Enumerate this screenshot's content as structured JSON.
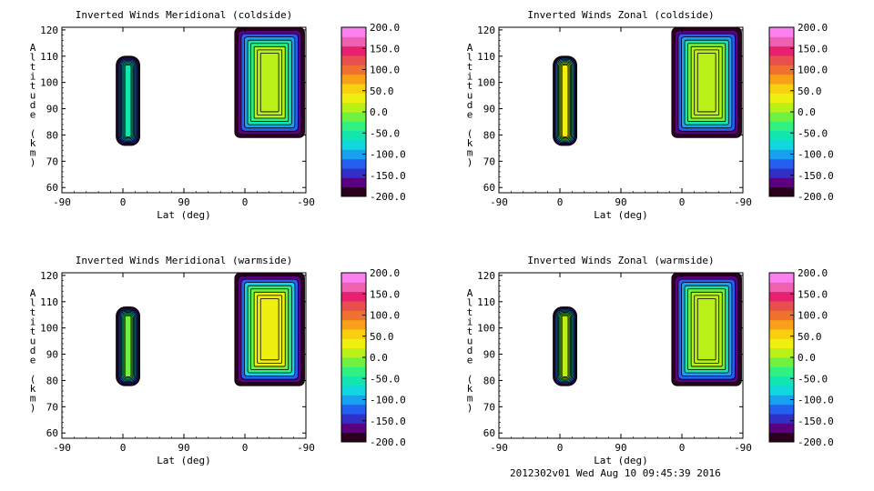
{
  "chart_data": [
    {
      "type": "heatmap",
      "title": "Inverted Winds Meridional (coldside)",
      "xlabel": "Lat (deg)",
      "ylabel": "Altitude (km)",
      "x_ticks": [
        "-90",
        "0",
        "90",
        "0",
        "-90"
      ],
      "y_ticks": [
        "60",
        "70",
        "80",
        "90",
        "100",
        "110",
        "120"
      ],
      "ylim": [
        58,
        121
      ],
      "blocks": [
        {
          "lat_range": [
            -10,
            25
          ],
          "alt_range": [
            76,
            110
          ],
          "center_value": -60,
          "edge_value": -200
        },
        {
          "lat_range": [
            -90,
            10
          ],
          "alt_range": [
            79,
            121
          ],
          "center_value": 10,
          "edge_value": -200
        }
      ]
    },
    {
      "type": "heatmap",
      "title": "Inverted Winds Zonal (coldside)",
      "xlabel": "Lat (deg)",
      "ylabel": "Altitude (km)",
      "x_ticks": [
        "-90",
        "0",
        "90",
        "0",
        "-90"
      ],
      "y_ticks": [
        "60",
        "70",
        "80",
        "90",
        "100",
        "110",
        "120"
      ],
      "ylim": [
        58,
        121
      ],
      "blocks": [
        {
          "lat_range": [
            -10,
            25
          ],
          "alt_range": [
            76,
            110
          ],
          "center_value": 40,
          "edge_value": -200
        },
        {
          "lat_range": [
            -90,
            10
          ],
          "alt_range": [
            79,
            121
          ],
          "center_value": 20,
          "edge_value": -200
        }
      ]
    },
    {
      "type": "heatmap",
      "title": "Inverted Winds Meridional (warmside)",
      "xlabel": "Lat (deg)",
      "ylabel": "Altitude (km)",
      "x_ticks": [
        "-90",
        "0",
        "90",
        "0",
        "-90"
      ],
      "y_ticks": [
        "60",
        "70",
        "80",
        "90",
        "100",
        "110",
        "120"
      ],
      "ylim": [
        58,
        121
      ],
      "blocks": [
        {
          "lat_range": [
            -10,
            25
          ],
          "alt_range": [
            78,
            108
          ],
          "center_value": -20,
          "edge_value": -200
        },
        {
          "lat_range": [
            -90,
            10
          ],
          "alt_range": [
            78,
            121
          ],
          "center_value": 40,
          "edge_value": -200
        }
      ]
    },
    {
      "type": "heatmap",
      "title": "Inverted Winds Zonal (warmside)",
      "xlabel": "Lat (deg)",
      "ylabel": "Altitude (km)",
      "x_ticks": [
        "-90",
        "0",
        "90",
        "0",
        "-90"
      ],
      "y_ticks": [
        "60",
        "70",
        "80",
        "90",
        "100",
        "110",
        "120"
      ],
      "ylim": [
        58,
        121
      ],
      "blocks": [
        {
          "lat_range": [
            -10,
            25
          ],
          "alt_range": [
            78,
            108
          ],
          "center_value": 10,
          "edge_value": -200
        },
        {
          "lat_range": [
            -90,
            10
          ],
          "alt_range": [
            78,
            121
          ],
          "center_value": 20,
          "edge_value": -200
        }
      ]
    }
  ],
  "colorbar": {
    "range": [
      -200,
      200
    ],
    "tick_labels": [
      "200.0",
      "150.0",
      "100.0",
      "50.0",
      "0.0",
      "-50.0",
      "-100.0",
      "-150.0",
      "-200.0"
    ],
    "colors": [
      "#2a001e",
      "#5a0080",
      "#3030c8",
      "#2460f0",
      "#1aa0f0",
      "#12d6e0",
      "#12e6b0",
      "#30f080",
      "#70f040",
      "#b8f018",
      "#f0f010",
      "#f8d010",
      "#f8a018",
      "#f07030",
      "#e85050",
      "#e82070",
      "#f060b0",
      "#fc80f0"
    ]
  },
  "footer": "2012302v01 Wed Aug 10 09:45:39 2016"
}
